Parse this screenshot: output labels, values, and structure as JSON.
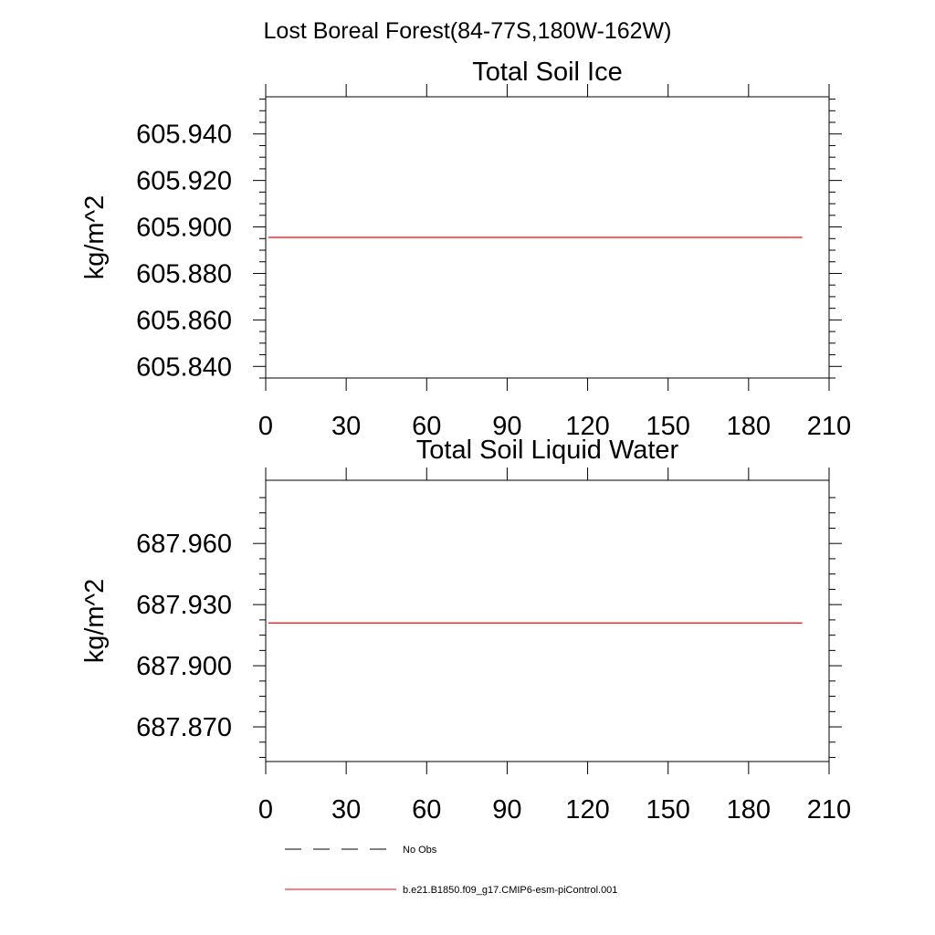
{
  "figure": {
    "title": "Lost Boreal Forest(84-77S,180W-162W)"
  },
  "chart_data": [
    {
      "type": "line",
      "title": "Total Soil Ice",
      "xlabel": "",
      "ylabel": "kg/m^2",
      "xlim": [
        0,
        210
      ],
      "ylim": [
        605.835,
        605.956
      ],
      "x_ticks": [
        0,
        30,
        60,
        90,
        120,
        150,
        180,
        210
      ],
      "x_tick_labels": [
        "0",
        "30",
        "60",
        "90",
        "120",
        "150",
        "180",
        "210"
      ],
      "y_ticks": [
        605.84,
        605.86,
        605.88,
        605.9,
        605.92,
        605.94
      ],
      "y_tick_labels": [
        "605.840",
        "605.860",
        "605.880",
        "605.900",
        "605.920",
        "605.940"
      ],
      "grid": false,
      "series": [
        {
          "name": "b.e21.B1850.f09_g17.CMIP6-esm-piControl.001",
          "color": "#ff0000",
          "x": [
            1,
            200
          ],
          "values": [
            605.8955,
            605.8955
          ]
        }
      ]
    },
    {
      "type": "line",
      "title": "Total Soil Liquid Water",
      "xlabel": "",
      "ylabel": "kg/m^2",
      "xlim": [
        0,
        210
      ],
      "ylim": [
        687.853,
        687.991
      ],
      "x_ticks": [
        0,
        30,
        60,
        90,
        120,
        150,
        180,
        210
      ],
      "x_tick_labels": [
        "0",
        "30",
        "60",
        "90",
        "120",
        "150",
        "180",
        "210"
      ],
      "y_ticks": [
        687.87,
        687.9,
        687.93,
        687.96
      ],
      "y_tick_labels": [
        "687.870",
        "687.900",
        "687.930",
        "687.960"
      ],
      "grid": false,
      "series": [
        {
          "name": "b.e21.B1850.f09_g17.CMIP6-esm-piControl.001",
          "color": "#ff0000",
          "x": [
            1,
            200
          ],
          "values": [
            687.921,
            687.921
          ]
        }
      ]
    }
  ],
  "legend": {
    "placement": "bottom",
    "items": [
      {
        "label": "No Obs",
        "style": "dashed",
        "color": "#000000"
      },
      {
        "label": "b.e21.B1850.f09_g17.CMIP6-esm-piControl.001",
        "style": "solid",
        "color": "#ff0000"
      }
    ]
  }
}
